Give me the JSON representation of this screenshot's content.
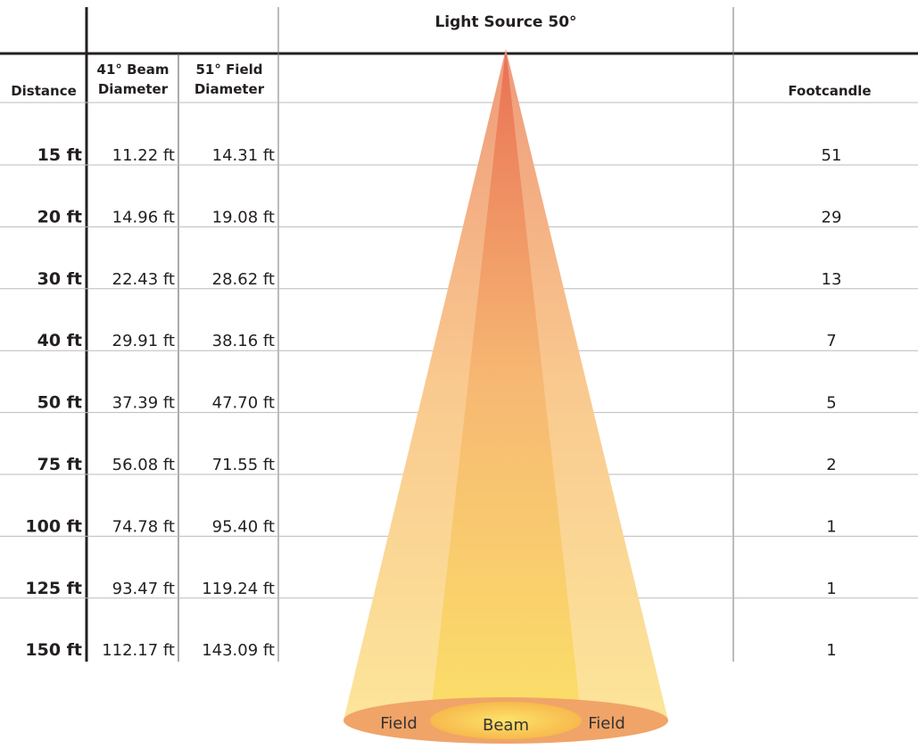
{
  "header": {
    "light_source": "Light Source 50°",
    "columns": [
      [
        "Distance"
      ],
      [
        "41° Beam",
        "Diameter"
      ],
      [
        "51° Field",
        "Diameter"
      ],
      [
        "Footcandle"
      ]
    ]
  },
  "table": {
    "rows": [
      [
        "15 ft",
        "11.22 ft",
        "14.31 ft",
        "51"
      ],
      [
        "20 ft",
        "14.96 ft",
        "19.08 ft",
        "29"
      ],
      [
        "30 ft",
        "22.43 ft",
        "28.62 ft",
        "13"
      ],
      [
        "40 ft",
        "29.91 ft",
        "38.16 ft",
        "7"
      ],
      [
        "50 ft",
        "37.39 ft",
        "47.70 ft",
        "5"
      ],
      [
        "75 ft",
        "56.08 ft",
        "71.55 ft",
        "2"
      ],
      [
        "100 ft",
        "74.78 ft",
        "95.40 ft",
        "1"
      ],
      [
        "125 ft",
        "93.47 ft",
        "119.24 ft",
        "1"
      ],
      [
        "150 ft",
        "112.17 ft",
        "143.09 ft",
        "1"
      ]
    ]
  },
  "cone": {
    "labels": [
      "Field",
      "Beam",
      "Field"
    ]
  }
}
